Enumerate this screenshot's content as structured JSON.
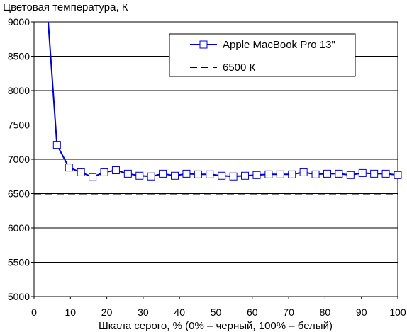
{
  "chart_data": {
    "type": "line",
    "ylabel": "Цветовая температура, К",
    "xlabel": "Шкала серого, % (0% – черный, 100% – белый)",
    "xlim": [
      0,
      100
    ],
    "ylim": [
      5000,
      9000
    ],
    "x_ticks": [
      0,
      10,
      20,
      30,
      40,
      50,
      60,
      70,
      80,
      90,
      100
    ],
    "y_ticks": [
      5000,
      5500,
      6000,
      6500,
      7000,
      7500,
      8000,
      8500,
      9000
    ],
    "grid": "horizontal",
    "legend_position": "top-right",
    "series": [
      {
        "name": "Apple MacBook Pro 13\"",
        "color": "#0000cc",
        "marker": "square",
        "x": [
          3.9,
          6.3,
          9.6,
          12.9,
          16.1,
          19.3,
          22.5,
          25.8,
          29.0,
          32.2,
          35.4,
          38.7,
          41.9,
          45.1,
          48.3,
          51.6,
          54.8,
          58.0,
          61.2,
          64.5,
          67.7,
          70.9,
          74.1,
          77.4,
          80.6,
          83.8,
          87.0,
          90.3,
          93.5,
          96.7,
          100
        ],
        "y": [
          9000,
          7210,
          6880,
          6810,
          6740,
          6810,
          6840,
          6790,
          6760,
          6750,
          6790,
          6760,
          6790,
          6780,
          6780,
          6760,
          6750,
          6760,
          6770,
          6780,
          6780,
          6780,
          6810,
          6780,
          6790,
          6790,
          6770,
          6800,
          6790,
          6790,
          6770
        ],
        "marker_from_index": 1
      },
      {
        "name": "6500 К",
        "color": "#000000",
        "dash": "dashed",
        "x": [
          0,
          100
        ],
        "y": [
          6500,
          6500
        ]
      }
    ]
  }
}
